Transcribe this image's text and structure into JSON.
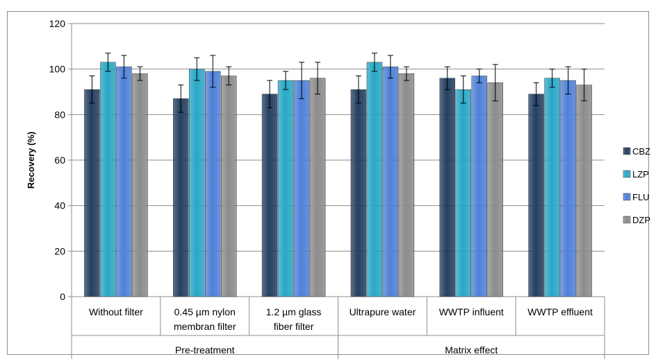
{
  "chart_data": {
    "type": "bar",
    "ylabel": "Recovery (%)",
    "xlabel": "",
    "ylim": [
      0,
      120
    ],
    "yticks": [
      0,
      20,
      40,
      60,
      80,
      100,
      120
    ],
    "grid": true,
    "legend_position": "right",
    "categories": [
      [
        "Without filter"
      ],
      [
        "0.45 µm nylon",
        "membran filter"
      ],
      [
        "1.2 µm glass",
        "fiber filter"
      ],
      [
        "Ultrapure water"
      ],
      [
        "WWTP influent"
      ],
      [
        "WWTP effluent"
      ]
    ],
    "groups": [
      {
        "label": "Pre-treatment",
        "span": [
          0,
          2
        ]
      },
      {
        "label": "Matrix effect",
        "span": [
          3,
          5
        ]
      }
    ],
    "series": [
      {
        "name": "CBZ",
        "color": "#254061",
        "values": [
          91,
          87,
          89,
          91,
          96,
          89
        ],
        "errors": [
          6,
          6,
          6,
          6,
          5,
          5
        ]
      },
      {
        "name": "LZP",
        "color": "#2aa7c5",
        "values": [
          103,
          100,
          95,
          103,
          91,
          96
        ],
        "errors": [
          4,
          5,
          4,
          4,
          6,
          4
        ]
      },
      {
        "name": "FLU",
        "color": "#4f81d8",
        "values": [
          101,
          99,
          95,
          101,
          97,
          95
        ],
        "errors": [
          5,
          7,
          8,
          5,
          3,
          6
        ]
      },
      {
        "name": "DZP",
        "color": "#8c8c8c",
        "values": [
          98,
          97,
          96,
          98,
          94,
          93
        ],
        "errors": [
          3,
          4,
          7,
          3,
          8,
          7
        ]
      }
    ]
  }
}
